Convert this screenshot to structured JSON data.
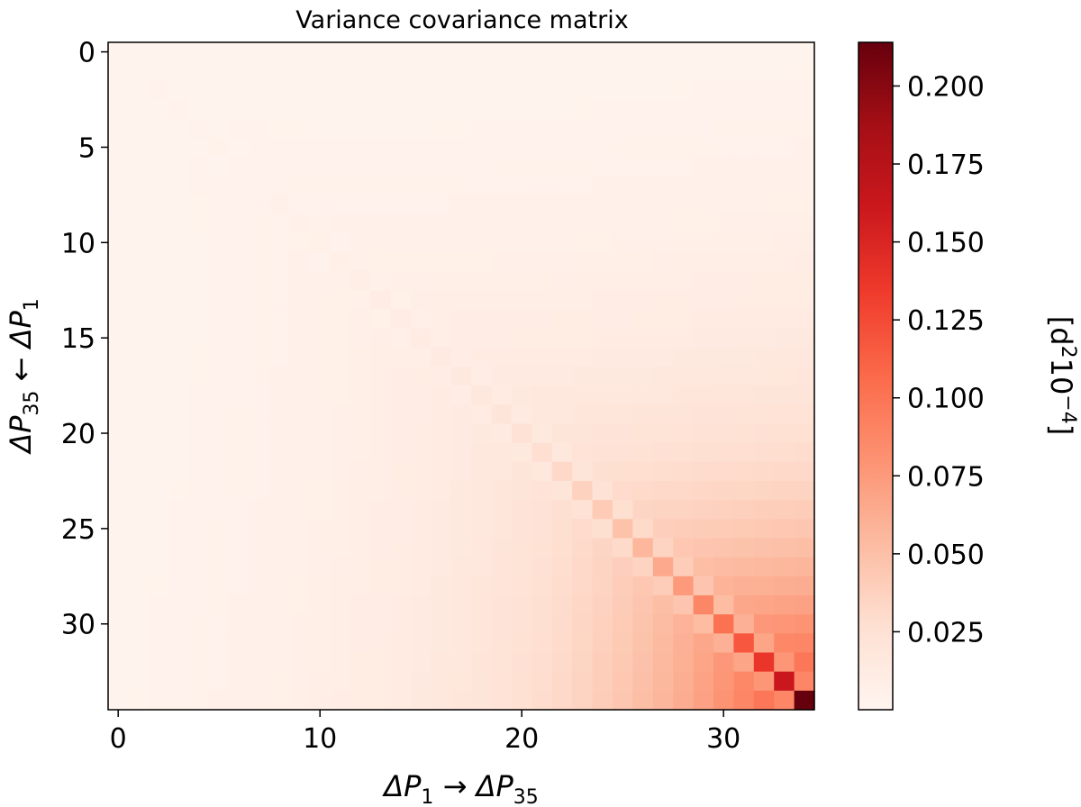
{
  "chart_data": {
    "type": "heatmap",
    "title": "Variance covariance matrix",
    "xlabel": {
      "a": "ΔP",
      "a_sub": "1",
      "arrow": " → ",
      "b": "ΔP",
      "b_sub": "35"
    },
    "ylabel": {
      "a": "ΔP",
      "a_sub": "35",
      "arrow": " ← ",
      "b": "ΔP",
      "b_sub": "1"
    },
    "rows": 35,
    "cols": 35,
    "x_ticks": [
      {
        "value": 0,
        "label": "0"
      },
      {
        "value": 10,
        "label": "10"
      },
      {
        "value": 20,
        "label": "20"
      },
      {
        "value": 30,
        "label": "30"
      }
    ],
    "y_ticks": [
      {
        "value": 0,
        "label": "0"
      },
      {
        "value": 5,
        "label": "5"
      },
      {
        "value": 10,
        "label": "10"
      },
      {
        "value": 15,
        "label": "15"
      },
      {
        "value": 20,
        "label": "20"
      },
      {
        "value": 25,
        "label": "25"
      },
      {
        "value": 30,
        "label": "30"
      }
    ],
    "xlim": [
      -0.5,
      34.5
    ],
    "ylim": [
      34.5,
      -0.5
    ],
    "colorbar": {
      "label": "[d²10⁻⁴]",
      "label_parts": {
        "open": "[d",
        "sup1": "2",
        "mid": "10",
        "sup2": "−4",
        "close": "]"
      },
      "vmin": 0.0,
      "vmax": 0.214,
      "colormap": "Reds",
      "ticks": [
        {
          "value": 0.025,
          "label": "0.025"
        },
        {
          "value": 0.05,
          "label": "0.050"
        },
        {
          "value": 0.075,
          "label": "0.075"
        },
        {
          "value": 0.1,
          "label": "0.100"
        },
        {
          "value": 0.125,
          "label": "0.125"
        },
        {
          "value": 0.15,
          "label": "0.150"
        },
        {
          "value": 0.175,
          "label": "0.175"
        },
        {
          "value": 0.2,
          "label": "0.200"
        }
      ]
    },
    "diagonal": [
      0.0027,
      0.0029,
      0.0032,
      0.0034,
      0.0037,
      0.0041,
      0.0045,
      0.0049,
      0.0055,
      0.0061,
      0.0068,
      0.0076,
      0.0085,
      0.0096,
      0.0109,
      0.0123,
      0.014,
      0.0159,
      0.0182,
      0.0208,
      0.0239,
      0.0274,
      0.0316,
      0.0364,
      0.042,
      0.0485,
      0.0561,
      0.065,
      0.0753,
      0.0874,
      0.1016,
      0.118,
      0.138,
      0.162,
      0.214
    ],
    "diagonal_note_none": "",
    "offdiagonal_base": [
      0.0022,
      0.0024,
      0.0026,
      0.0028,
      0.003,
      0.0033,
      0.0036,
      0.004,
      0.0044,
      0.0049,
      0.0054,
      0.006,
      0.0067,
      0.0075,
      0.0084,
      0.0094,
      0.0106,
      0.012,
      0.0136,
      0.0154,
      0.0175,
      0.0199,
      0.0227,
      0.0259,
      0.0296,
      0.0338,
      0.0386,
      0.0441,
      0.0503,
      0.0574,
      0.0655,
      0.0747,
      0.0851,
      0.0969,
      0.1102
    ],
    "adjacent_dip": 0.8,
    "decay_length": 9.0,
    "grid": false
  }
}
